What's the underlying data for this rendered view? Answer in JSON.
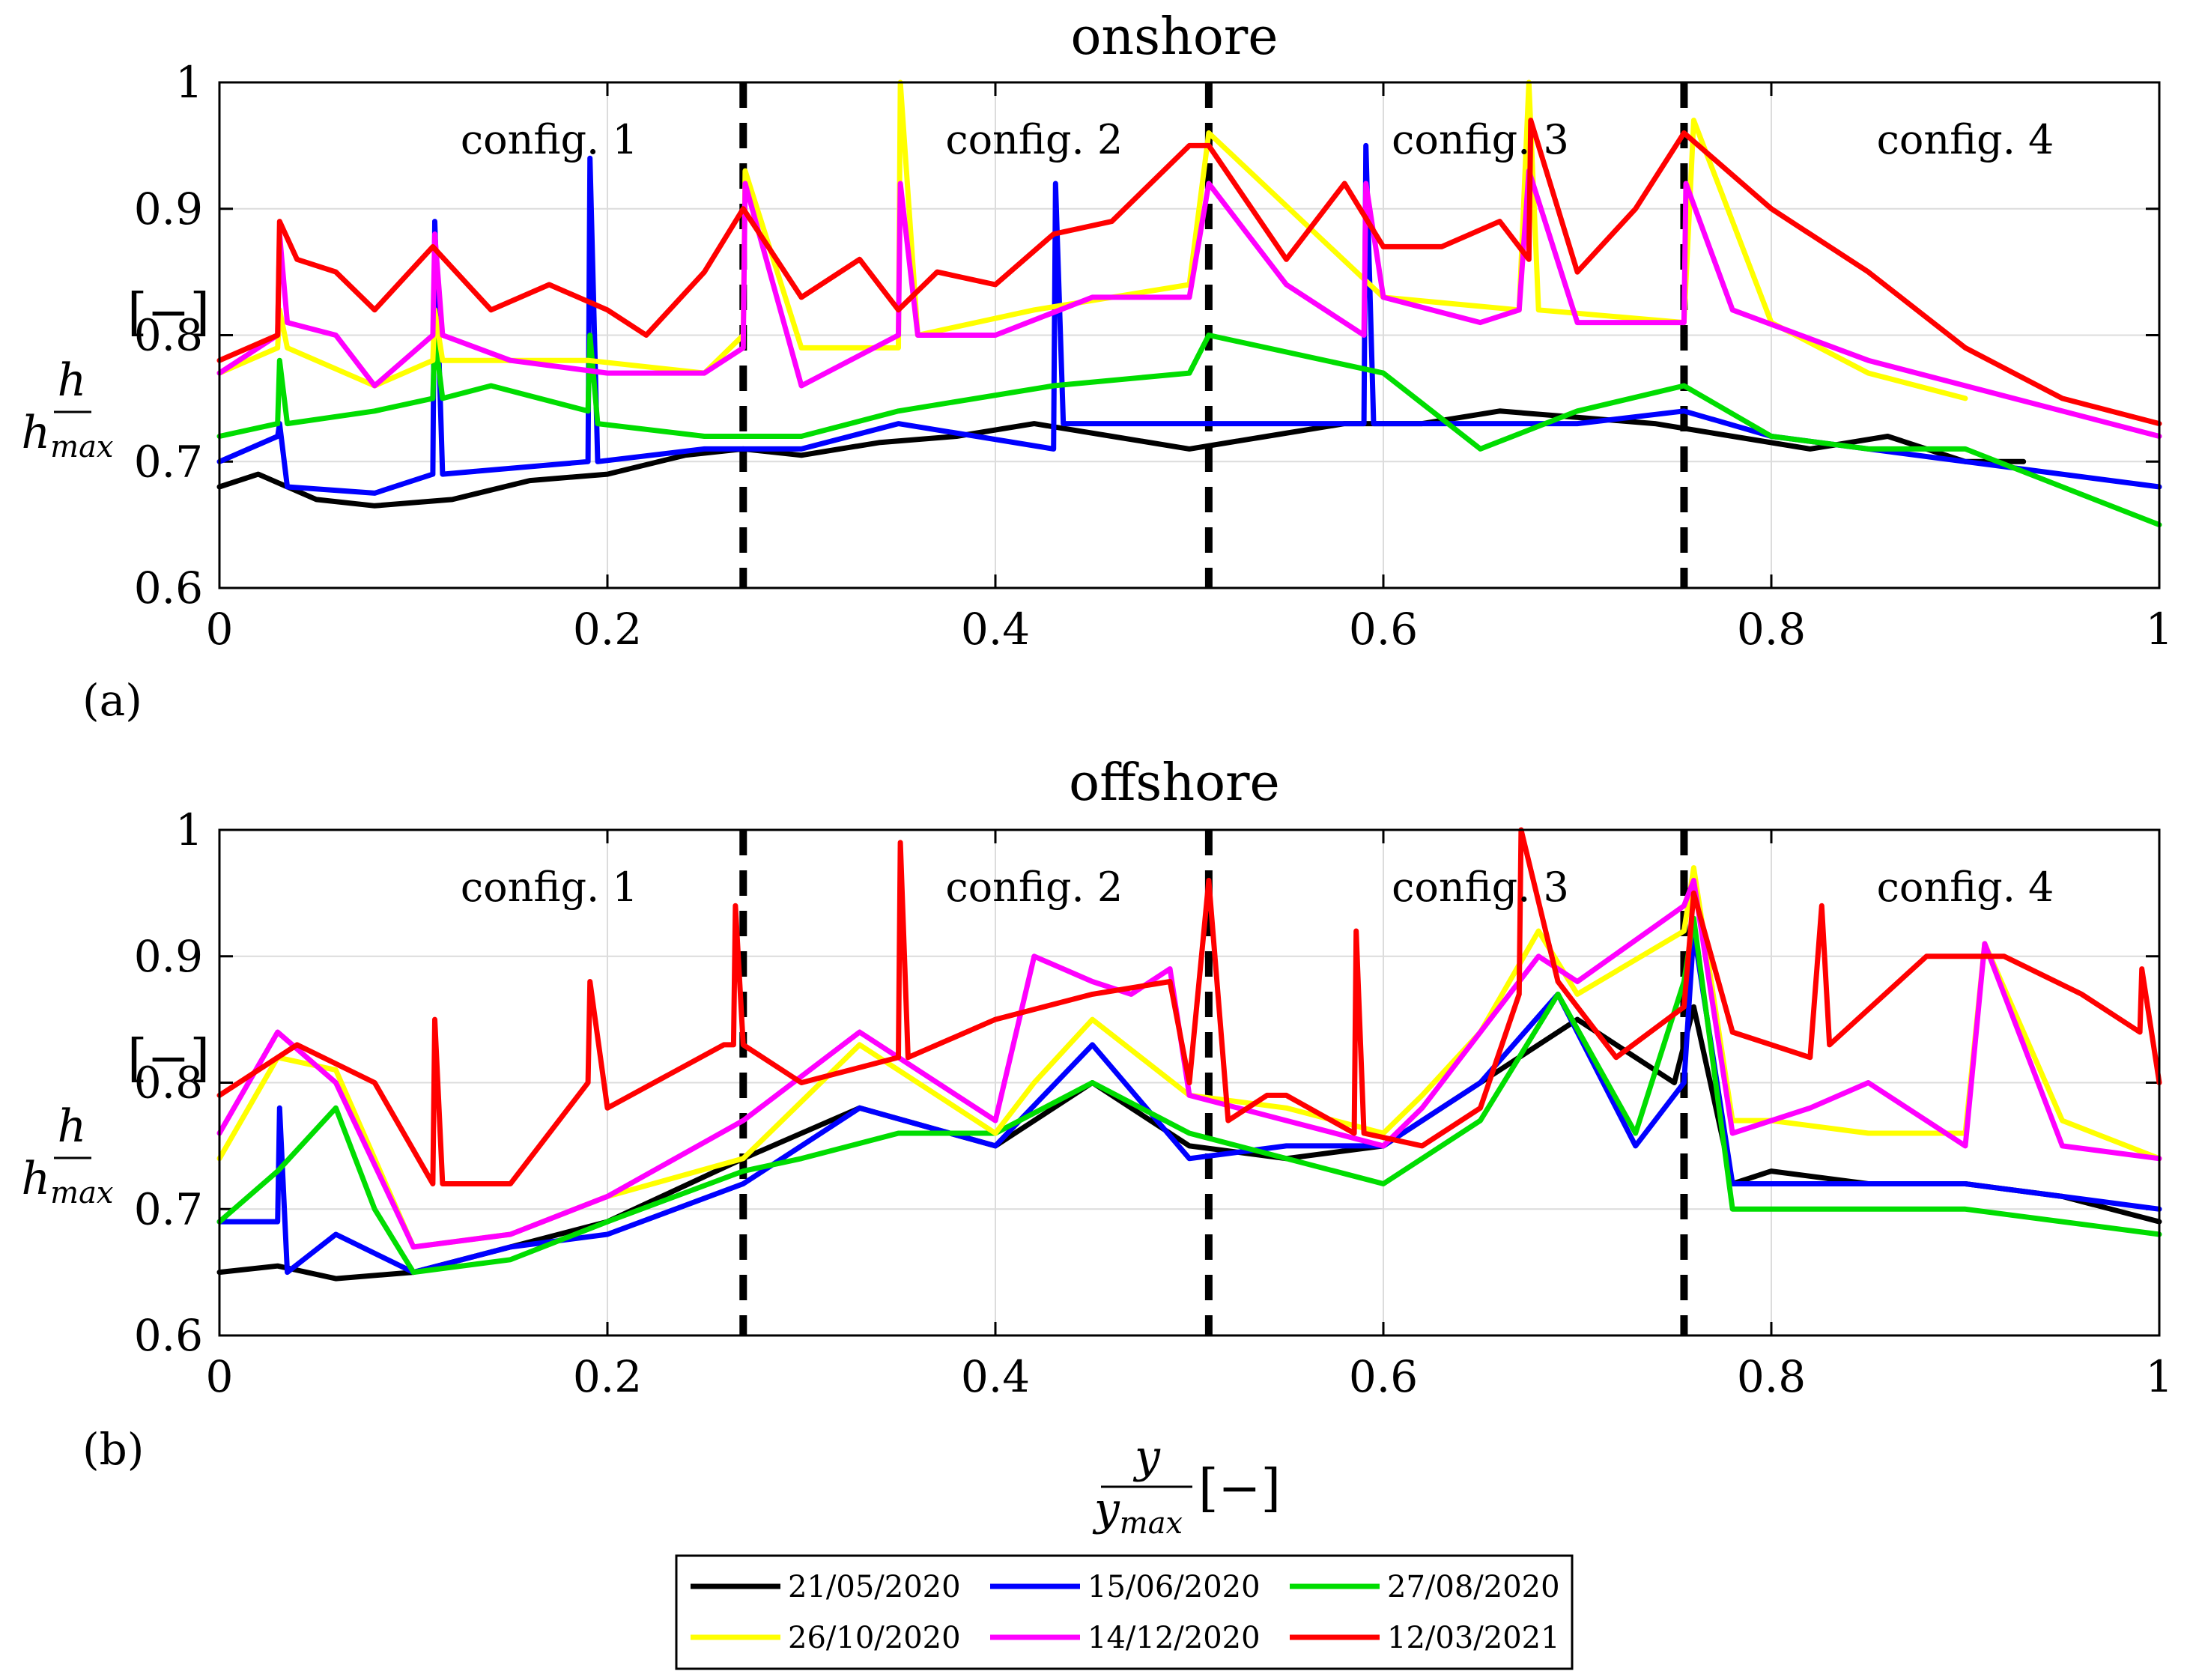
{
  "chart_data": [
    {
      "type": "line",
      "panel_label": "(a)",
      "title": "onshore",
      "xlabel": "y / y_max [–]",
      "ylabel": "h / h_max [–]",
      "xlim": [
        0,
        1
      ],
      "ylim": [
        0.6,
        1
      ],
      "xticks": [
        "0",
        "0.2",
        "0.4",
        "0.6",
        "0.8",
        "1"
      ],
      "yticks": [
        "0.6",
        "0.7",
        "0.8",
        "0.9",
        "1"
      ],
      "grid": true,
      "config_boundaries": [
        0.27,
        0.51,
        0.755
      ],
      "config_labels": [
        {
          "text": "config. 1",
          "x": 0.17
        },
        {
          "text": "config. 2",
          "x": 0.42
        },
        {
          "text": "config. 3",
          "x": 0.65
        },
        {
          "text": "config. 4",
          "x": 0.9
        }
      ],
      "series": [
        {
          "name": "21/05/2020",
          "color": "#000000",
          "x": [
            0,
            0.02,
            0.05,
            0.08,
            0.12,
            0.16,
            0.2,
            0.24,
            0.27,
            0.3,
            0.34,
            0.38,
            0.42,
            0.46,
            0.5,
            0.54,
            0.58,
            0.62,
            0.66,
            0.7,
            0.74,
            0.78,
            0.82,
            0.86,
            0.9,
            0.93
          ],
          "y": [
            0.68,
            0.69,
            0.67,
            0.665,
            0.67,
            0.685,
            0.69,
            0.705,
            0.71,
            0.705,
            0.715,
            0.72,
            0.73,
            0.72,
            0.71,
            0.72,
            0.73,
            0.73,
            0.74,
            0.735,
            0.73,
            0.72,
            0.71,
            0.72,
            0.7,
            0.7
          ]
        },
        {
          "name": "15/06/2020",
          "color": "#0000ff",
          "x": [
            0,
            0.03,
            0.031,
            0.035,
            0.08,
            0.11,
            0.111,
            0.115,
            0.19,
            0.191,
            0.195,
            0.25,
            0.3,
            0.35,
            0.43,
            0.431,
            0.435,
            0.5,
            0.59,
            0.591,
            0.595,
            0.7,
            0.755,
            0.8,
            0.9,
            1
          ],
          "y": [
            0.7,
            0.72,
            0.73,
            0.68,
            0.675,
            0.69,
            0.89,
            0.69,
            0.7,
            0.94,
            0.7,
            0.71,
            0.71,
            0.73,
            0.71,
            0.92,
            0.73,
            0.73,
            0.73,
            0.95,
            0.73,
            0.73,
            0.74,
            0.72,
            0.7,
            0.68
          ]
        },
        {
          "name": "27/08/2020",
          "color": "#00dd00",
          "x": [
            0,
            0.03,
            0.031,
            0.035,
            0.08,
            0.11,
            0.111,
            0.115,
            0.14,
            0.19,
            0.191,
            0.195,
            0.25,
            0.3,
            0.35,
            0.43,
            0.5,
            0.51,
            0.6,
            0.65,
            0.7,
            0.755,
            0.8,
            0.85,
            0.9,
            1
          ],
          "y": [
            0.72,
            0.73,
            0.78,
            0.73,
            0.74,
            0.75,
            0.8,
            0.75,
            0.76,
            0.74,
            0.8,
            0.73,
            0.72,
            0.72,
            0.74,
            0.76,
            0.77,
            0.8,
            0.77,
            0.71,
            0.74,
            0.76,
            0.72,
            0.71,
            0.71,
            0.65
          ]
        },
        {
          "name": "26/10/2020",
          "color": "#ffff00",
          "x": [
            0,
            0.03,
            0.031,
            0.035,
            0.08,
            0.11,
            0.111,
            0.115,
            0.19,
            0.25,
            0.27,
            0.271,
            0.3,
            0.35,
            0.351,
            0.36,
            0.42,
            0.5,
            0.51,
            0.6,
            0.67,
            0.675,
            0.68,
            0.755,
            0.76,
            0.8,
            0.85,
            0.9
          ],
          "y": [
            0.77,
            0.79,
            0.82,
            0.79,
            0.76,
            0.78,
            0.82,
            0.78,
            0.78,
            0.77,
            0.8,
            0.93,
            0.79,
            0.79,
            1.0,
            0.8,
            0.82,
            0.84,
            0.96,
            0.83,
            0.82,
            1.0,
            0.82,
            0.81,
            0.97,
            0.81,
            0.77,
            0.75
          ]
        },
        {
          "name": "14/12/2020",
          "color": "#ff00ff",
          "x": [
            0,
            0.03,
            0.031,
            0.035,
            0.06,
            0.08,
            0.11,
            0.111,
            0.115,
            0.15,
            0.2,
            0.25,
            0.27,
            0.271,
            0.3,
            0.35,
            0.351,
            0.36,
            0.4,
            0.45,
            0.5,
            0.51,
            0.55,
            0.59,
            0.591,
            0.6,
            0.65,
            0.67,
            0.675,
            0.7,
            0.755,
            0.756,
            0.78,
            0.85,
            0.9,
            1
          ],
          "y": [
            0.77,
            0.8,
            0.88,
            0.81,
            0.8,
            0.76,
            0.8,
            0.88,
            0.8,
            0.78,
            0.77,
            0.77,
            0.79,
            0.92,
            0.76,
            0.8,
            0.92,
            0.8,
            0.8,
            0.83,
            0.83,
            0.92,
            0.84,
            0.8,
            0.92,
            0.83,
            0.81,
            0.82,
            0.93,
            0.81,
            0.81,
            0.92,
            0.82,
            0.78,
            0.76,
            0.72
          ]
        },
        {
          "name": "12/03/2021",
          "color": "#ff0000",
          "x": [
            0,
            0.03,
            0.031,
            0.04,
            0.06,
            0.08,
            0.11,
            0.14,
            0.17,
            0.2,
            0.22,
            0.25,
            0.27,
            0.3,
            0.33,
            0.35,
            0.37,
            0.4,
            0.43,
            0.46,
            0.5,
            0.51,
            0.55,
            0.58,
            0.6,
            0.63,
            0.66,
            0.675,
            0.676,
            0.7,
            0.73,
            0.755,
            0.77,
            0.8,
            0.85,
            0.9,
            0.95,
            1
          ],
          "y": [
            0.78,
            0.8,
            0.89,
            0.86,
            0.85,
            0.82,
            0.87,
            0.82,
            0.84,
            0.82,
            0.8,
            0.85,
            0.9,
            0.83,
            0.86,
            0.82,
            0.85,
            0.84,
            0.88,
            0.89,
            0.95,
            0.95,
            0.86,
            0.92,
            0.87,
            0.87,
            0.89,
            0.86,
            0.97,
            0.85,
            0.9,
            0.96,
            0.94,
            0.9,
            0.85,
            0.79,
            0.75,
            0.73
          ]
        }
      ]
    },
    {
      "type": "line",
      "panel_label": "(b)",
      "title": "offshore",
      "xlabel": "y / y_max [–]",
      "ylabel": "h / h_max [–]",
      "xlim": [
        0,
        1
      ],
      "ylim": [
        0.6,
        1
      ],
      "xticks": [
        "0",
        "0.2",
        "0.4",
        "0.6",
        "0.8",
        "1"
      ],
      "yticks": [
        "0.6",
        "0.7",
        "0.8",
        "0.9",
        "1"
      ],
      "grid": true,
      "config_boundaries": [
        0.27,
        0.51,
        0.755
      ],
      "config_labels": [
        {
          "text": "config. 1",
          "x": 0.17
        },
        {
          "text": "config. 2",
          "x": 0.42
        },
        {
          "text": "config. 3",
          "x": 0.65
        },
        {
          "text": "config. 4",
          "x": 0.9
        }
      ],
      "series": [
        {
          "name": "21/05/2020",
          "color": "#000000",
          "x": [
            0,
            0.03,
            0.06,
            0.1,
            0.15,
            0.2,
            0.27,
            0.33,
            0.4,
            0.45,
            0.5,
            0.55,
            0.6,
            0.65,
            0.7,
            0.75,
            0.76,
            0.78,
            0.8,
            0.85,
            0.9,
            0.95,
            1
          ],
          "y": [
            0.65,
            0.655,
            0.645,
            0.65,
            0.67,
            0.69,
            0.74,
            0.78,
            0.75,
            0.8,
            0.75,
            0.74,
            0.75,
            0.8,
            0.85,
            0.8,
            0.86,
            0.72,
            0.73,
            0.72,
            0.72,
            0.71,
            0.69
          ]
        },
        {
          "name": "15/06/2020",
          "color": "#0000ff",
          "x": [
            0,
            0.03,
            0.031,
            0.035,
            0.06,
            0.1,
            0.15,
            0.2,
            0.27,
            0.33,
            0.4,
            0.45,
            0.5,
            0.55,
            0.6,
            0.65,
            0.69,
            0.73,
            0.755,
            0.76,
            0.78,
            0.85,
            0.9,
            0.95,
            1
          ],
          "y": [
            0.69,
            0.69,
            0.78,
            0.65,
            0.68,
            0.65,
            0.67,
            0.68,
            0.72,
            0.78,
            0.75,
            0.83,
            0.74,
            0.75,
            0.75,
            0.8,
            0.87,
            0.75,
            0.8,
            0.92,
            0.72,
            0.72,
            0.72,
            0.71,
            0.7
          ]
        },
        {
          "name": "27/08/2020",
          "color": "#00dd00",
          "x": [
            0,
            0.03,
            0.06,
            0.08,
            0.1,
            0.15,
            0.2,
            0.27,
            0.3,
            0.35,
            0.4,
            0.45,
            0.5,
            0.55,
            0.6,
            0.65,
            0.69,
            0.73,
            0.755,
            0.76,
            0.78,
            0.85,
            0.9,
            0.95,
            1
          ],
          "y": [
            0.69,
            0.73,
            0.78,
            0.7,
            0.65,
            0.66,
            0.69,
            0.73,
            0.74,
            0.76,
            0.76,
            0.8,
            0.76,
            0.74,
            0.72,
            0.77,
            0.87,
            0.76,
            0.88,
            0.93,
            0.7,
            0.7,
            0.7,
            0.69,
            0.68
          ]
        },
        {
          "name": "26/10/2020",
          "color": "#ffff00",
          "x": [
            0,
            0.03,
            0.06,
            0.1,
            0.15,
            0.2,
            0.27,
            0.33,
            0.4,
            0.42,
            0.45,
            0.5,
            0.55,
            0.6,
            0.62,
            0.65,
            0.68,
            0.7,
            0.755,
            0.76,
            0.78,
            0.8,
            0.85,
            0.9,
            0.91,
            0.95,
            1
          ],
          "y": [
            0.74,
            0.82,
            0.81,
            0.67,
            0.68,
            0.71,
            0.74,
            0.83,
            0.76,
            0.8,
            0.85,
            0.79,
            0.78,
            0.76,
            0.79,
            0.84,
            0.92,
            0.87,
            0.92,
            0.97,
            0.77,
            0.77,
            0.76,
            0.76,
            0.91,
            0.77,
            0.74
          ]
        },
        {
          "name": "14/12/2020",
          "color": "#ff00ff",
          "x": [
            0,
            0.03,
            0.06,
            0.1,
            0.15,
            0.2,
            0.27,
            0.33,
            0.4,
            0.42,
            0.45,
            0.47,
            0.49,
            0.5,
            0.55,
            0.6,
            0.62,
            0.65,
            0.68,
            0.7,
            0.755,
            0.76,
            0.78,
            0.82,
            0.85,
            0.9,
            0.91,
            0.95,
            1
          ],
          "y": [
            0.76,
            0.84,
            0.8,
            0.67,
            0.68,
            0.71,
            0.77,
            0.84,
            0.77,
            0.9,
            0.88,
            0.87,
            0.89,
            0.79,
            0.77,
            0.75,
            0.78,
            0.84,
            0.9,
            0.88,
            0.94,
            0.96,
            0.76,
            0.78,
            0.8,
            0.75,
            0.91,
            0.75,
            0.74
          ]
        },
        {
          "name": "12/03/2021",
          "color": "#ff0000",
          "x": [
            0,
            0.04,
            0.08,
            0.11,
            0.111,
            0.115,
            0.15,
            0.19,
            0.191,
            0.2,
            0.26,
            0.265,
            0.266,
            0.27,
            0.3,
            0.35,
            0.351,
            0.355,
            0.4,
            0.45,
            0.49,
            0.5,
            0.51,
            0.52,
            0.54,
            0.55,
            0.585,
            0.586,
            0.59,
            0.62,
            0.65,
            0.67,
            0.671,
            0.69,
            0.72,
            0.755,
            0.76,
            0.78,
            0.82,
            0.826,
            0.83,
            0.88,
            0.92,
            0.96,
            0.99,
            0.991,
            1
          ],
          "y": [
            0.79,
            0.83,
            0.8,
            0.72,
            0.85,
            0.72,
            0.72,
            0.8,
            0.88,
            0.78,
            0.83,
            0.83,
            0.94,
            0.83,
            0.8,
            0.82,
            0.99,
            0.82,
            0.85,
            0.87,
            0.88,
            0.8,
            0.96,
            0.77,
            0.79,
            0.79,
            0.76,
            0.92,
            0.76,
            0.75,
            0.78,
            0.87,
            1.0,
            0.88,
            0.82,
            0.86,
            0.95,
            0.84,
            0.82,
            0.94,
            0.83,
            0.9,
            0.9,
            0.87,
            0.84,
            0.89,
            0.8
          ]
        }
      ]
    }
  ],
  "legend": [
    {
      "name": "21/05/2020",
      "color": "#000000"
    },
    {
      "name": "15/06/2020",
      "color": "#0000ff"
    },
    {
      "name": "27/08/2020",
      "color": "#00dd00"
    },
    {
      "name": "26/10/2020",
      "color": "#ffff00"
    },
    {
      "name": "14/12/2020",
      "color": "#ff00ff"
    },
    {
      "name": "12/03/2021",
      "color": "#ff0000"
    }
  ],
  "axis_text": {
    "ylabel_num": "h",
    "ylabel_den": "h",
    "ylabel_den_sub": "max",
    "xlabel_num": "y",
    "xlabel_den": "y",
    "xlabel_den_sub": "max",
    "unit_bracket": "[−]"
  }
}
